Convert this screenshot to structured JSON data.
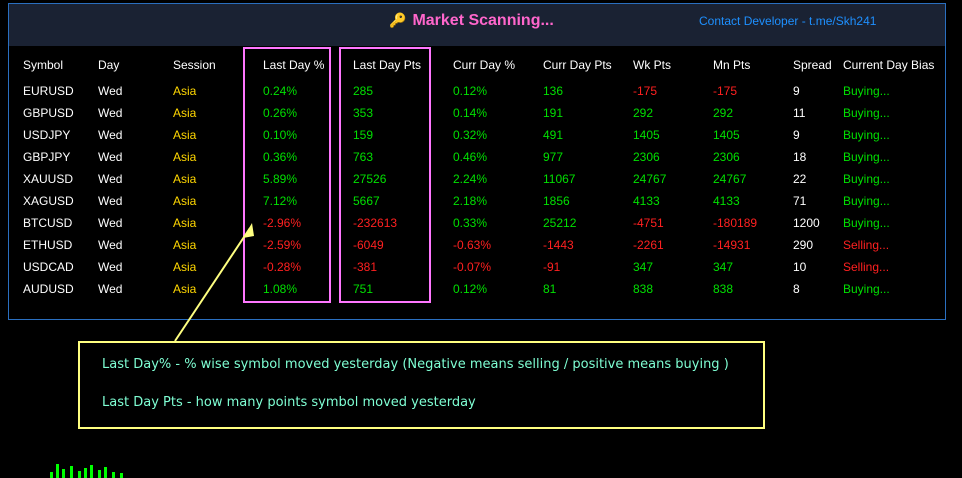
{
  "header": {
    "title": "Market Scanning...",
    "contact": "Contact Developer - t.me/Skh241"
  },
  "columns": [
    "Symbol",
    "Day",
    "Session",
    "Last Day %",
    "Last Day Pts",
    "Curr Day %",
    "Curr Day Pts",
    "Wk Pts",
    "Mn Pts",
    "Spread",
    "Current Day Bias"
  ],
  "rows": [
    [
      "EURUSD",
      "Wed",
      "Asia",
      "0.24%",
      "285",
      "0.12%",
      "136",
      "-175",
      "-175",
      "9",
      "Buying..."
    ],
    [
      "GBPUSD",
      "Wed",
      "Asia",
      "0.26%",
      "353",
      "0.14%",
      "191",
      "292",
      "292",
      "11",
      "Buying..."
    ],
    [
      "USDJPY",
      "Wed",
      "Asia",
      "0.10%",
      "159",
      "0.32%",
      "491",
      "1405",
      "1405",
      "9",
      "Buying..."
    ],
    [
      "GBPJPY",
      "Wed",
      "Asia",
      "0.36%",
      "763",
      "0.46%",
      "977",
      "2306",
      "2306",
      "18",
      "Buying..."
    ],
    [
      "XAUUSD",
      "Wed",
      "Asia",
      "5.89%",
      "27526",
      "2.24%",
      "11067",
      "24767",
      "24767",
      "22",
      "Buying..."
    ],
    [
      "XAGUSD",
      "Wed",
      "Asia",
      "7.12%",
      "5667",
      "2.18%",
      "1856",
      "4133",
      "4133",
      "71",
      "Buying..."
    ],
    [
      "BTCUSD",
      "Wed",
      "Asia",
      "-2.96%",
      "-232613",
      "0.33%",
      "25212",
      "-4751",
      "-180189",
      "1200",
      "Buying..."
    ],
    [
      "ETHUSD",
      "Wed",
      "Asia",
      "-2.59%",
      "-6049",
      "-0.63%",
      "-1443",
      "-2261",
      "-14931",
      "290",
      "Selling..."
    ],
    [
      "USDCAD",
      "Wed",
      "Asia",
      "-0.28%",
      "-381",
      "-0.07%",
      "-91",
      "347",
      "347",
      "10",
      "Selling..."
    ],
    [
      "AUDUSD",
      "Wed",
      "Asia",
      "1.08%",
      "751",
      "0.12%",
      "81",
      "838",
      "838",
      "8",
      "Buying..."
    ]
  ],
  "note": {
    "line1": "Last Day% - % wise symbol moved yesterday (Negative means selling / positive means buying )",
    "line2": "Last Day Pts - how many points symbol moved yesterday"
  },
  "colors": {
    "positive": "#00e000",
    "negative": "#ff2020",
    "session": "#ffd700",
    "highlight": "#ff77ff",
    "border": "#2a6fc0"
  },
  "icons": {
    "title_icon": "key-icon"
  }
}
